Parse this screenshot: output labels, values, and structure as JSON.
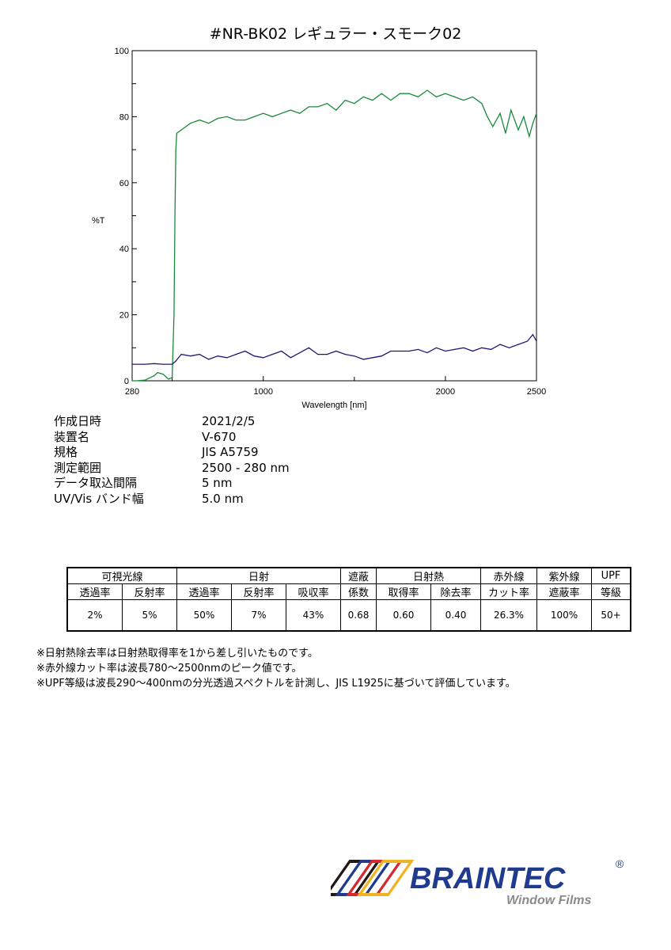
{
  "chart_data": {
    "type": "line",
    "title": "#NR-BK02  レギュラー・スモーク02",
    "xlabel": "Wavelength [nm]",
    "ylabel": "%T",
    "xlim": [
      280,
      2500
    ],
    "ylim": [
      0,
      100
    ],
    "xticks": [
      280,
      1000,
      2000,
      2500
    ],
    "xminor": [
      500,
      1500
    ],
    "yticks": [
      0,
      20,
      40,
      60,
      80,
      100
    ],
    "yminor": [
      10,
      30,
      50,
      70,
      90
    ],
    "grid": false,
    "series": [
      {
        "color": "#1a8a3a",
        "x": [
          280,
          300,
          350,
          400,
          420,
          450,
          480,
          500,
          510,
          515,
          520,
          525,
          550,
          600,
          650,
          700,
          750,
          800,
          850,
          900,
          950,
          1000,
          1050,
          1100,
          1150,
          1200,
          1250,
          1300,
          1350,
          1400,
          1450,
          1500,
          1550,
          1600,
          1650,
          1700,
          1750,
          1800,
          1850,
          1900,
          1950,
          2000,
          2050,
          2100,
          2150,
          2200,
          2230,
          2260,
          2300,
          2330,
          2360,
          2400,
          2430,
          2460,
          2480,
          2500
        ],
        "y": [
          0,
          0,
          0.2,
          1.5,
          2.5,
          2,
          0.5,
          1,
          20,
          50,
          70,
          75,
          76,
          78,
          79,
          78,
          79.5,
          80,
          79,
          79,
          80,
          81,
          80,
          81,
          82,
          81,
          83,
          83,
          84,
          82,
          85,
          84,
          86,
          85,
          87,
          85,
          87,
          87,
          86,
          88,
          86,
          87,
          86,
          85,
          86,
          84,
          80,
          77,
          81,
          75,
          82,
          76,
          80,
          74,
          78,
          81
        ]
      },
      {
        "color": "#1c1a78",
        "x": [
          280,
          350,
          400,
          450,
          500,
          520,
          550,
          600,
          650,
          700,
          750,
          800,
          850,
          900,
          950,
          1000,
          1050,
          1100,
          1150,
          1200,
          1250,
          1300,
          1350,
          1400,
          1450,
          1500,
          1550,
          1600,
          1650,
          1700,
          1750,
          1800,
          1850,
          1900,
          1950,
          2000,
          2050,
          2100,
          2150,
          2200,
          2250,
          2300,
          2350,
          2400,
          2450,
          2480,
          2500
        ],
        "y": [
          5,
          5,
          5.2,
          5,
          5,
          6,
          8,
          7.5,
          8,
          6.5,
          7.5,
          7,
          8,
          9,
          7.5,
          7,
          8,
          9,
          7,
          8.5,
          10,
          8,
          8,
          9,
          8,
          7.5,
          6.5,
          7,
          7.5,
          9,
          9,
          9,
          9.5,
          8.5,
          10,
          9,
          9.5,
          10,
          9,
          10,
          9.5,
          11,
          10,
          11,
          12,
          14,
          12
        ]
      }
    ]
  },
  "info": [
    {
      "k": "作成日時",
      "v": "2021/2/5"
    },
    {
      "k": "装置名",
      "v": "V-670"
    },
    {
      "k": "規格",
      "v": "JIS A5759"
    },
    {
      "k": "測定範囲",
      "v": "2500 - 280 nm"
    },
    {
      "k": "データ取込間隔",
      "v": "5 nm"
    },
    {
      "k": "UV/Vis バンド幅",
      "v": "5.0 nm"
    }
  ],
  "table": {
    "group_headers": [
      "可視光線",
      "日射",
      "遮蔽",
      "日射熱",
      "赤外線",
      "紫外線",
      "UPF"
    ],
    "sub_headers": [
      "透過率",
      "反射率",
      "透過率",
      "反射率",
      "吸収率",
      "係数",
      "取得率",
      "除去率",
      "カット率",
      "遮蔽率",
      "等級"
    ],
    "values": [
      "2%",
      "5%",
      "50%",
      "7%",
      "43%",
      "0.68",
      "0.60",
      "0.40",
      "26.3%",
      "100%",
      "50+"
    ]
  },
  "notes": [
    "※日射熱除去率は日射熱取得率を1から差し引いたものです。",
    "※赤外線カット率は波長780～2500nmのピーク値です。",
    "※UPF等級は波長290～400nmの分光透過スペクトルを計測し、JIS L1925に基づいて評価しています。"
  ],
  "logo": {
    "brand": "BRAINTEC",
    "sub": "Window Films",
    "mark": "®",
    "colors": [
      "#231815",
      "#1f3a8f",
      "#d7282f",
      "#f0b323"
    ]
  }
}
